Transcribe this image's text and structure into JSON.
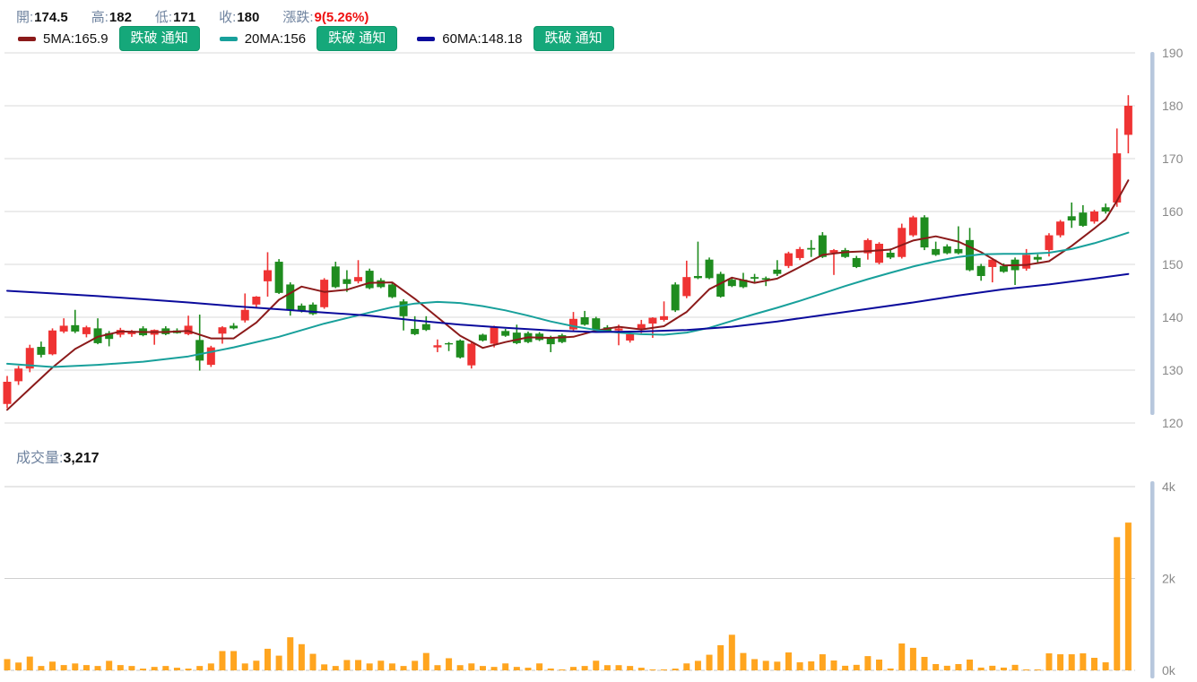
{
  "header": {
    "fields": [
      {
        "label": "開:",
        "value": "174.5"
      },
      {
        "label": "高:",
        "value": "182"
      },
      {
        "label": "低:",
        "value": "171"
      },
      {
        "label": "收:",
        "value": "180"
      },
      {
        "label": "漲跌:",
        "value": "9(5.26%)"
      }
    ]
  },
  "legend": {
    "items": [
      {
        "label": "5MA:165.9",
        "color": "#8b1a1a",
        "button": "跌破 通知"
      },
      {
        "label": "20MA:156",
        "color": "#18a09b",
        "button": "跌破 通知"
      },
      {
        "label": "60MA:148.18",
        "color": "#0b0b9c",
        "button": "跌破 通知"
      }
    ]
  },
  "volume_row": {
    "label": "成交量:",
    "value": "3,217"
  },
  "colors": {
    "up_candle": "#ef3333",
    "down_candle": "#1f8c1f",
    "ma5": "#8b1a1a",
    "ma20": "#18a09b",
    "ma60": "#0b0b9c",
    "volume_bar": "#ffa51f",
    "grid": "#d9d9d9",
    "axis_text": "#898989",
    "axis_scrollbar": "#b7c7dd",
    "button_green": "#15a87a",
    "change_red": "#ee1111",
    "label_blue_gray": "#6f839f"
  },
  "chart_data": {
    "type": "candlestick+volume",
    "price_axis": {
      "min": 120,
      "max": 190,
      "ticks": [
        190,
        180,
        170,
        160,
        150,
        140,
        130,
        120
      ],
      "side": "right",
      "grid": true
    },
    "volume_axis": {
      "min": 0,
      "max": 4000,
      "ticks": [
        {
          "label": "4k",
          "v": 4000
        },
        {
          "label": "2k",
          "v": 2000
        },
        {
          "label": "0k",
          "v": 0
        }
      ],
      "side": "right"
    },
    "last": {
      "open": 174.5,
      "high": 182,
      "low": 171,
      "close": 180,
      "change": 9,
      "change_pct": 5.26,
      "volume": 3217
    },
    "candles": [
      [
        123.6,
        128.9,
        122.8,
        127.8,
        245
      ],
      [
        127.9,
        130.8,
        127.2,
        130.3,
        170
      ],
      [
        130.3,
        134.8,
        129.6,
        134.2,
        300
      ],
      [
        134.4,
        135.4,
        132.4,
        132.9,
        95
      ],
      [
        133.0,
        137.9,
        132.8,
        137.5,
        190
      ],
      [
        137.3,
        139.8,
        137.0,
        138.4,
        115
      ],
      [
        138.5,
        141.4,
        137.0,
        137.3,
        150
      ],
      [
        136.8,
        138.4,
        136.2,
        138.1,
        115
      ],
      [
        137.9,
        139.8,
        134.9,
        135.1,
        95
      ],
      [
        137.0,
        137.4,
        134.5,
        135.9,
        207
      ],
      [
        136.7,
        138.0,
        136.2,
        137.6,
        115
      ],
      [
        136.8,
        137.6,
        136.3,
        137.4,
        95
      ],
      [
        137.9,
        138.3,
        136.4,
        136.6,
        38
      ],
      [
        136.7,
        137.7,
        134.8,
        137.6,
        75
      ],
      [
        137.9,
        138.3,
        136.6,
        136.8,
        95
      ],
      [
        137.5,
        137.9,
        136.9,
        137.0,
        57
      ],
      [
        136.8,
        140.3,
        136.6,
        138.4,
        38
      ],
      [
        135.7,
        140.5,
        129.9,
        131.8,
        95
      ],
      [
        131.0,
        134.6,
        130.6,
        134.3,
        150
      ],
      [
        136.9,
        138.3,
        135.0,
        138.1,
        420
      ],
      [
        138.4,
        138.9,
        137.7,
        137.9,
        420
      ],
      [
        139.4,
        144.5,
        139.0,
        141.4,
        150
      ],
      [
        142.4,
        144.0,
        141.9,
        143.9,
        210
      ],
      [
        146.8,
        152.3,
        143.9,
        148.9,
        470
      ],
      [
        150.5,
        151.0,
        144.4,
        144.6,
        320
      ],
      [
        146.2,
        146.6,
        140.3,
        141.4,
        720
      ],
      [
        142.2,
        142.6,
        140.9,
        141.2,
        570
      ],
      [
        142.4,
        142.8,
        140.4,
        140.6,
        360
      ],
      [
        141.9,
        147.4,
        141.6,
        147.1,
        130
      ],
      [
        149.6,
        150.5,
        145.5,
        145.7,
        95
      ],
      [
        147.2,
        148.9,
        144.8,
        146.3,
        225
      ],
      [
        146.8,
        150.8,
        146.4,
        147.6,
        225
      ],
      [
        148.8,
        149.2,
        145.3,
        145.5,
        150
      ],
      [
        147.0,
        147.4,
        145.5,
        145.7,
        210
      ],
      [
        146.2,
        146.6,
        143.6,
        143.8,
        150
      ],
      [
        143.0,
        143.4,
        137.5,
        140.2,
        95
      ],
      [
        137.8,
        140.2,
        136.6,
        136.8,
        207
      ],
      [
        138.7,
        140.2,
        137.4,
        137.6,
        378
      ],
      [
        134.3,
        135.8,
        133.4,
        134.7,
        113
      ],
      [
        135.1,
        135.3,
        133.6,
        135.0,
        264
      ],
      [
        135.6,
        135.8,
        132.2,
        132.4,
        113
      ],
      [
        130.9,
        135.2,
        130.3,
        135.0,
        151
      ],
      [
        136.7,
        136.9,
        135.4,
        135.6,
        95
      ],
      [
        135.0,
        138.4,
        134.3,
        138.2,
        75
      ],
      [
        137.4,
        137.8,
        136.3,
        136.5,
        151
      ],
      [
        137.1,
        138.6,
        134.9,
        135.1,
        75
      ],
      [
        137.0,
        137.3,
        135.1,
        135.3,
        57
      ],
      [
        136.9,
        137.2,
        135.5,
        135.7,
        151
      ],
      [
        136.2,
        136.5,
        133.4,
        134.9,
        40
      ],
      [
        136.6,
        136.9,
        135.1,
        135.3,
        20
      ],
      [
        137.7,
        141.0,
        137.4,
        139.7,
        75
      ],
      [
        140.0,
        141.2,
        138.4,
        138.6,
        95
      ],
      [
        139.8,
        140.1,
        137.5,
        137.7,
        210
      ],
      [
        138.1,
        138.5,
        137.2,
        137.4,
        113
      ],
      [
        137.5,
        138.6,
        134.7,
        137.9,
        113
      ],
      [
        135.6,
        137.0,
        135.2,
        136.8,
        95
      ],
      [
        137.9,
        139.5,
        137.0,
        138.7,
        57
      ],
      [
        138.8,
        140.0,
        136.1,
        139.9,
        20
      ],
      [
        139.5,
        143.0,
        139.2,
        140.2,
        20
      ],
      [
        146.2,
        146.6,
        141.0,
        141.3,
        38
      ],
      [
        144.0,
        150.7,
        143.6,
        147.6,
        151
      ],
      [
        147.8,
        154.3,
        147.2,
        147.4,
        207
      ],
      [
        150.9,
        151.3,
        147.2,
        147.4,
        340
      ],
      [
        148.2,
        148.6,
        143.7,
        143.9,
        548
      ],
      [
        147.1,
        147.5,
        145.7,
        145.9,
        775
      ],
      [
        147.1,
        148.4,
        145.5,
        145.7,
        378
      ],
      [
        147.6,
        148.2,
        146.7,
        147.3,
        245
      ],
      [
        147.4,
        147.7,
        145.9,
        147.1,
        207
      ],
      [
        149.0,
        150.8,
        147.8,
        148.2,
        189
      ],
      [
        149.7,
        152.4,
        149.3,
        152.1,
        390
      ],
      [
        151.2,
        153.3,
        150.8,
        152.9,
        175
      ],
      [
        153.1,
        154.6,
        151.4,
        152.8,
        195
      ],
      [
        155.5,
        156.1,
        151.2,
        151.4,
        350
      ],
      [
        152.2,
        152.9,
        148.0,
        152.7,
        215
      ],
      [
        152.7,
        153.1,
        151.2,
        151.4,
        100
      ],
      [
        151.2,
        151.6,
        149.3,
        149.5,
        120
      ],
      [
        152.1,
        154.9,
        150.9,
        154.6,
        310
      ],
      [
        150.3,
        154.2,
        150.0,
        153.9,
        235
      ],
      [
        152.2,
        153.0,
        151.0,
        151.3,
        40
      ],
      [
        151.4,
        157.7,
        151.1,
        156.9,
        585
      ],
      [
        155.5,
        159.2,
        155.2,
        158.9,
        490
      ],
      [
        158.9,
        159.3,
        152.7,
        153.2,
        293
      ],
      [
        152.9,
        154.3,
        151.6,
        151.8,
        137
      ],
      [
        153.4,
        153.8,
        151.9,
        152.1,
        100
      ],
      [
        152.9,
        157.2,
        151.9,
        152.1,
        137
      ],
      [
        154.6,
        156.9,
        148.7,
        148.9,
        235
      ],
      [
        149.7,
        150.1,
        146.9,
        147.8,
        60
      ],
      [
        149.5,
        151.2,
        146.6,
        150.9,
        100
      ],
      [
        149.7,
        150.2,
        148.4,
        148.6,
        60
      ],
      [
        150.9,
        151.3,
        146.1,
        148.9,
        120
      ],
      [
        149.2,
        152.9,
        148.8,
        151.8,
        20
      ],
      [
        151.4,
        151.9,
        150.4,
        150.9,
        20
      ],
      [
        152.7,
        155.9,
        151.5,
        155.5,
        370
      ],
      [
        155.5,
        158.4,
        155.1,
        158.1,
        350
      ],
      [
        159.1,
        161.7,
        156.9,
        158.3,
        350
      ],
      [
        159.8,
        161.2,
        157.1,
        157.3,
        370
      ],
      [
        158.1,
        160.3,
        157.7,
        160.0,
        273
      ],
      [
        160.8,
        161.5,
        159.6,
        160.0,
        175
      ],
      [
        161.7,
        175.7,
        160.9,
        171.0,
        2900
      ],
      [
        174.5,
        182.0,
        171.0,
        180.0,
        3217
      ]
    ],
    "ma": {
      "ma5": {
        "label": "5MA",
        "value": 165.9,
        "points": [
          [
            0,
            122.5
          ],
          [
            2,
            126.5
          ],
          [
            4,
            130.5
          ],
          [
            6,
            134.0
          ],
          [
            8,
            136.3
          ],
          [
            10,
            137.3
          ],
          [
            12,
            137.2
          ],
          [
            14,
            137.2
          ],
          [
            16,
            137.4
          ],
          [
            18,
            136.0
          ],
          [
            20,
            136.0
          ],
          [
            22,
            139.0
          ],
          [
            24,
            143.3
          ],
          [
            26,
            145.8
          ],
          [
            28,
            144.8
          ],
          [
            30,
            145.2
          ],
          [
            32,
            146.5
          ],
          [
            34,
            146.6
          ],
          [
            36,
            143.5
          ],
          [
            38,
            140.0
          ],
          [
            40,
            136.5
          ],
          [
            42,
            134.2
          ],
          [
            44,
            135.3
          ],
          [
            46,
            136.2
          ],
          [
            48,
            136.1
          ],
          [
            50,
            136.3
          ],
          [
            52,
            137.5
          ],
          [
            54,
            138.2
          ],
          [
            56,
            137.7
          ],
          [
            58,
            138.3
          ],
          [
            60,
            141.0
          ],
          [
            62,
            145.3
          ],
          [
            64,
            147.5
          ],
          [
            66,
            146.5
          ],
          [
            68,
            147.3
          ],
          [
            70,
            149.5
          ],
          [
            72,
            151.8
          ],
          [
            74,
            152.3
          ],
          [
            76,
            152.5
          ],
          [
            78,
            152.8
          ],
          [
            80,
            154.5
          ],
          [
            82,
            155.3
          ],
          [
            84,
            154.3
          ],
          [
            86,
            152.3
          ],
          [
            88,
            149.8
          ],
          [
            90,
            149.9
          ],
          [
            92,
            150.6
          ],
          [
            94,
            153.5
          ],
          [
            96,
            156.8
          ],
          [
            97,
            158.5
          ],
          [
            98,
            162.0
          ],
          [
            99,
            165.9
          ]
        ]
      },
      "ma20": {
        "label": "20MA",
        "value": 156,
        "points": [
          [
            0,
            131.2
          ],
          [
            4,
            130.6
          ],
          [
            8,
            131.0
          ],
          [
            12,
            131.6
          ],
          [
            16,
            132.6
          ],
          [
            20,
            134.3
          ],
          [
            24,
            136.3
          ],
          [
            28,
            138.8
          ],
          [
            32,
            140.9
          ],
          [
            34,
            141.9
          ],
          [
            36,
            142.6
          ],
          [
            38,
            142.9
          ],
          [
            40,
            142.7
          ],
          [
            42,
            142.1
          ],
          [
            44,
            141.3
          ],
          [
            46,
            140.3
          ],
          [
            48,
            139.2
          ],
          [
            50,
            138.3
          ],
          [
            52,
            137.6
          ],
          [
            54,
            137.1
          ],
          [
            56,
            136.8
          ],
          [
            58,
            136.7
          ],
          [
            60,
            137.1
          ],
          [
            62,
            138.0
          ],
          [
            64,
            139.3
          ],
          [
            66,
            140.6
          ],
          [
            68,
            141.8
          ],
          [
            70,
            143.1
          ],
          [
            72,
            144.5
          ],
          [
            74,
            145.9
          ],
          [
            76,
            147.2
          ],
          [
            78,
            148.4
          ],
          [
            80,
            149.6
          ],
          [
            82,
            150.6
          ],
          [
            84,
            151.4
          ],
          [
            86,
            151.9
          ],
          [
            88,
            152.0
          ],
          [
            90,
            152.0
          ],
          [
            92,
            152.2
          ],
          [
            94,
            152.9
          ],
          [
            96,
            154.0
          ],
          [
            98,
            155.3
          ],
          [
            99,
            156.0
          ]
        ]
      },
      "ma60": {
        "label": "60MA",
        "value": 148.18,
        "points": [
          [
            0,
            145.0
          ],
          [
            4,
            144.5
          ],
          [
            8,
            144.0
          ],
          [
            12,
            143.4
          ],
          [
            16,
            142.8
          ],
          [
            20,
            142.1
          ],
          [
            24,
            141.5
          ],
          [
            28,
            140.9
          ],
          [
            32,
            140.3
          ],
          [
            36,
            139.4
          ],
          [
            40,
            138.6
          ],
          [
            44,
            138.0
          ],
          [
            48,
            137.5
          ],
          [
            52,
            137.2
          ],
          [
            56,
            137.3
          ],
          [
            60,
            137.6
          ],
          [
            64,
            138.2
          ],
          [
            68,
            139.2
          ],
          [
            72,
            140.4
          ],
          [
            76,
            141.6
          ],
          [
            80,
            142.8
          ],
          [
            84,
            144.1
          ],
          [
            88,
            145.3
          ],
          [
            92,
            146.2
          ],
          [
            96,
            147.3
          ],
          [
            99,
            148.18
          ]
        ]
      }
    }
  }
}
